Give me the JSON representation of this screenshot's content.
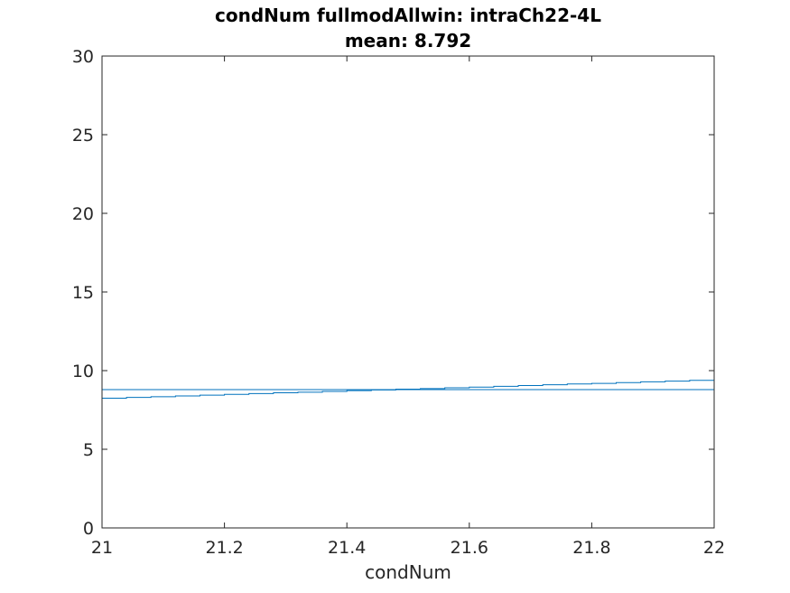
{
  "chart_data": {
    "type": "line",
    "title": "condNum fullmodAllwin: intraCh22-4L",
    "subtitle": "mean: 8.792",
    "xlabel": "condNum",
    "ylabel": "",
    "xlim": [
      21,
      22
    ],
    "ylim": [
      0,
      30
    ],
    "x_ticks": [
      "21",
      "21.2",
      "21.4",
      "21.6",
      "21.8",
      "22"
    ],
    "y_ticks": [
      "0",
      "5",
      "10",
      "15",
      "20",
      "25",
      "30"
    ],
    "grid": false,
    "series": [
      {
        "color": "#0072bd",
        "style": "step",
        "x": [
          21.0,
          21.04,
          21.08,
          21.12,
          21.16,
          21.2,
          21.24,
          21.28,
          21.32,
          21.36,
          21.4,
          21.44,
          21.48,
          21.52,
          21.56,
          21.6,
          21.64,
          21.68,
          21.72,
          21.76,
          21.8,
          21.84,
          21.88,
          21.92,
          21.96,
          22.0
        ],
        "y": [
          8.25,
          8.3,
          8.34,
          8.39,
          8.44,
          8.49,
          8.54,
          8.59,
          8.63,
          8.68,
          8.73,
          8.77,
          8.82,
          8.86,
          8.91,
          8.95,
          9.0,
          9.05,
          9.1,
          9.15,
          9.19,
          9.24,
          9.29,
          9.33,
          9.38,
          9.38
        ]
      },
      {
        "color": "#0072bd",
        "style": "line",
        "x": [
          21,
          22
        ],
        "y": [
          8.792,
          8.792
        ]
      },
      {
        "color": "#d00000",
        "style": "line",
        "x": [
          21,
          22
        ],
        "y": [
          30,
          30
        ]
      }
    ]
  }
}
